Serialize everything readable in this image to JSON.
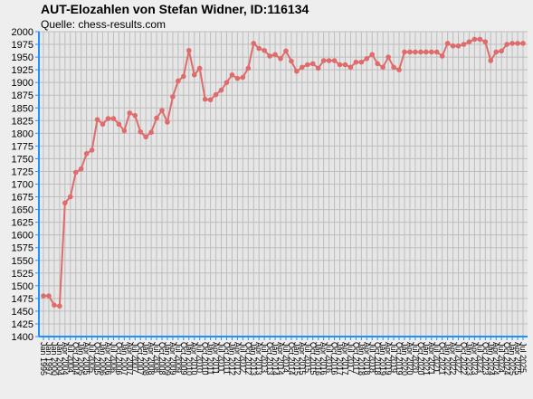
{
  "chart_data": {
    "type": "line",
    "title": "AUT-Elozahlen von Stefan Widner, ID:116134",
    "subtitle": "Quelle: chess-results.com",
    "categories": [
      "Jan 1995",
      "Jan 1997",
      "Jan 2000",
      "Jan 2004",
      "Apr 2004",
      "Jul 2004",
      "Oct 2004",
      "Jan 2005",
      "Apr 2005",
      "Jul 2005",
      "Oct 2005",
      "Jan 2006",
      "Apr 2006",
      "Jul 2006",
      "Oct 2006",
      "Jan 2007",
      "Apr 2007",
      "Jul 2007",
      "Oct 2007",
      "Jan 2008",
      "Apr 2008",
      "Jul 2008",
      "Oct 2008",
      "Jan 2009",
      "Apr 2009",
      "Jul 2009",
      "Oct 2009",
      "Jan 2010",
      "Apr 2010",
      "Jul 2010",
      "Oct 2010",
      "Jan 2011",
      "Apr 2011",
      "Jul 2011",
      "Oct 2011",
      "Jan 2012",
      "Apr 2012",
      "Jul 2012",
      "Oct 2012",
      "Jan 2013",
      "Apr 2013",
      "Jul 2013",
      "Oct 2013",
      "Jan 2014",
      "Apr 2014",
      "Jul 2014",
      "Oct 2014",
      "Jan 2015",
      "Apr 2015",
      "Jul 2015",
      "Oct 2015",
      "Jan 2016",
      "Apr 2016",
      "Jul 2016",
      "Oct 2016",
      "Jan 2017",
      "Apr 2017",
      "Jul 2017",
      "Oct 2017",
      "Jan 2018",
      "Apr 2018",
      "Jul 2018",
      "Oct 2018",
      "Jan 2019",
      "Apr 2019",
      "Jul 2019",
      "Oct 2019",
      "Jan 2020",
      "Apr 2020",
      "Jul 2020",
      "Oct 2020",
      "Jan 2021",
      "Apr 2021",
      "Jul 2021",
      "Oct 2021",
      "Jan 2022",
      "Apr 2022",
      "Jul 2022",
      "Oct 2022",
      "Jan 2023",
      "Apr 2023",
      "Jul 2023",
      "Oct 2023",
      "Jan 2024",
      "Apr 2024",
      "Jul 2024",
      "Oct 2024",
      "Jan 2025",
      "Apr 2025",
      "Jul 2025"
    ],
    "series": [
      {
        "name": "Elo",
        "color": "#e06b6b",
        "values": [
          1480,
          1480,
          1462,
          1460,
          1663,
          1675,
          1723,
          1730,
          1760,
          1767,
          1827,
          1818,
          1829,
          1829,
          1818,
          1805,
          1840,
          1835,
          1803,
          1793,
          1802,
          1830,
          1845,
          1822,
          1872,
          1903,
          1912,
          1963,
          1915,
          1928,
          1867,
          1866,
          1876,
          1885,
          1900,
          1915,
          1908,
          1910,
          1928,
          1977,
          1967,
          1963,
          1952,
          1955,
          1947,
          1962,
          1942,
          1922,
          1930,
          1935,
          1937,
          1928,
          1943,
          1943,
          1943,
          1935,
          1935,
          1930,
          1940,
          1940,
          1947,
          1955,
          1937,
          1930,
          1950,
          1930,
          1925,
          1960,
          1960,
          1960,
          1960,
          1960,
          1960,
          1960,
          1952,
          1977,
          1972,
          1972,
          1975,
          1980,
          1985,
          1985,
          1980,
          1943,
          1960,
          1962,
          1975,
          1977,
          1977,
          1977
        ]
      }
    ],
    "ylim": [
      1400,
      2000
    ],
    "yticks": [
      1400,
      1425,
      1450,
      1475,
      1500,
      1525,
      1550,
      1575,
      1600,
      1625,
      1650,
      1675,
      1700,
      1725,
      1750,
      1775,
      1800,
      1825,
      1850,
      1875,
      1900,
      1925,
      1950,
      1975,
      2000
    ],
    "grid": true
  }
}
